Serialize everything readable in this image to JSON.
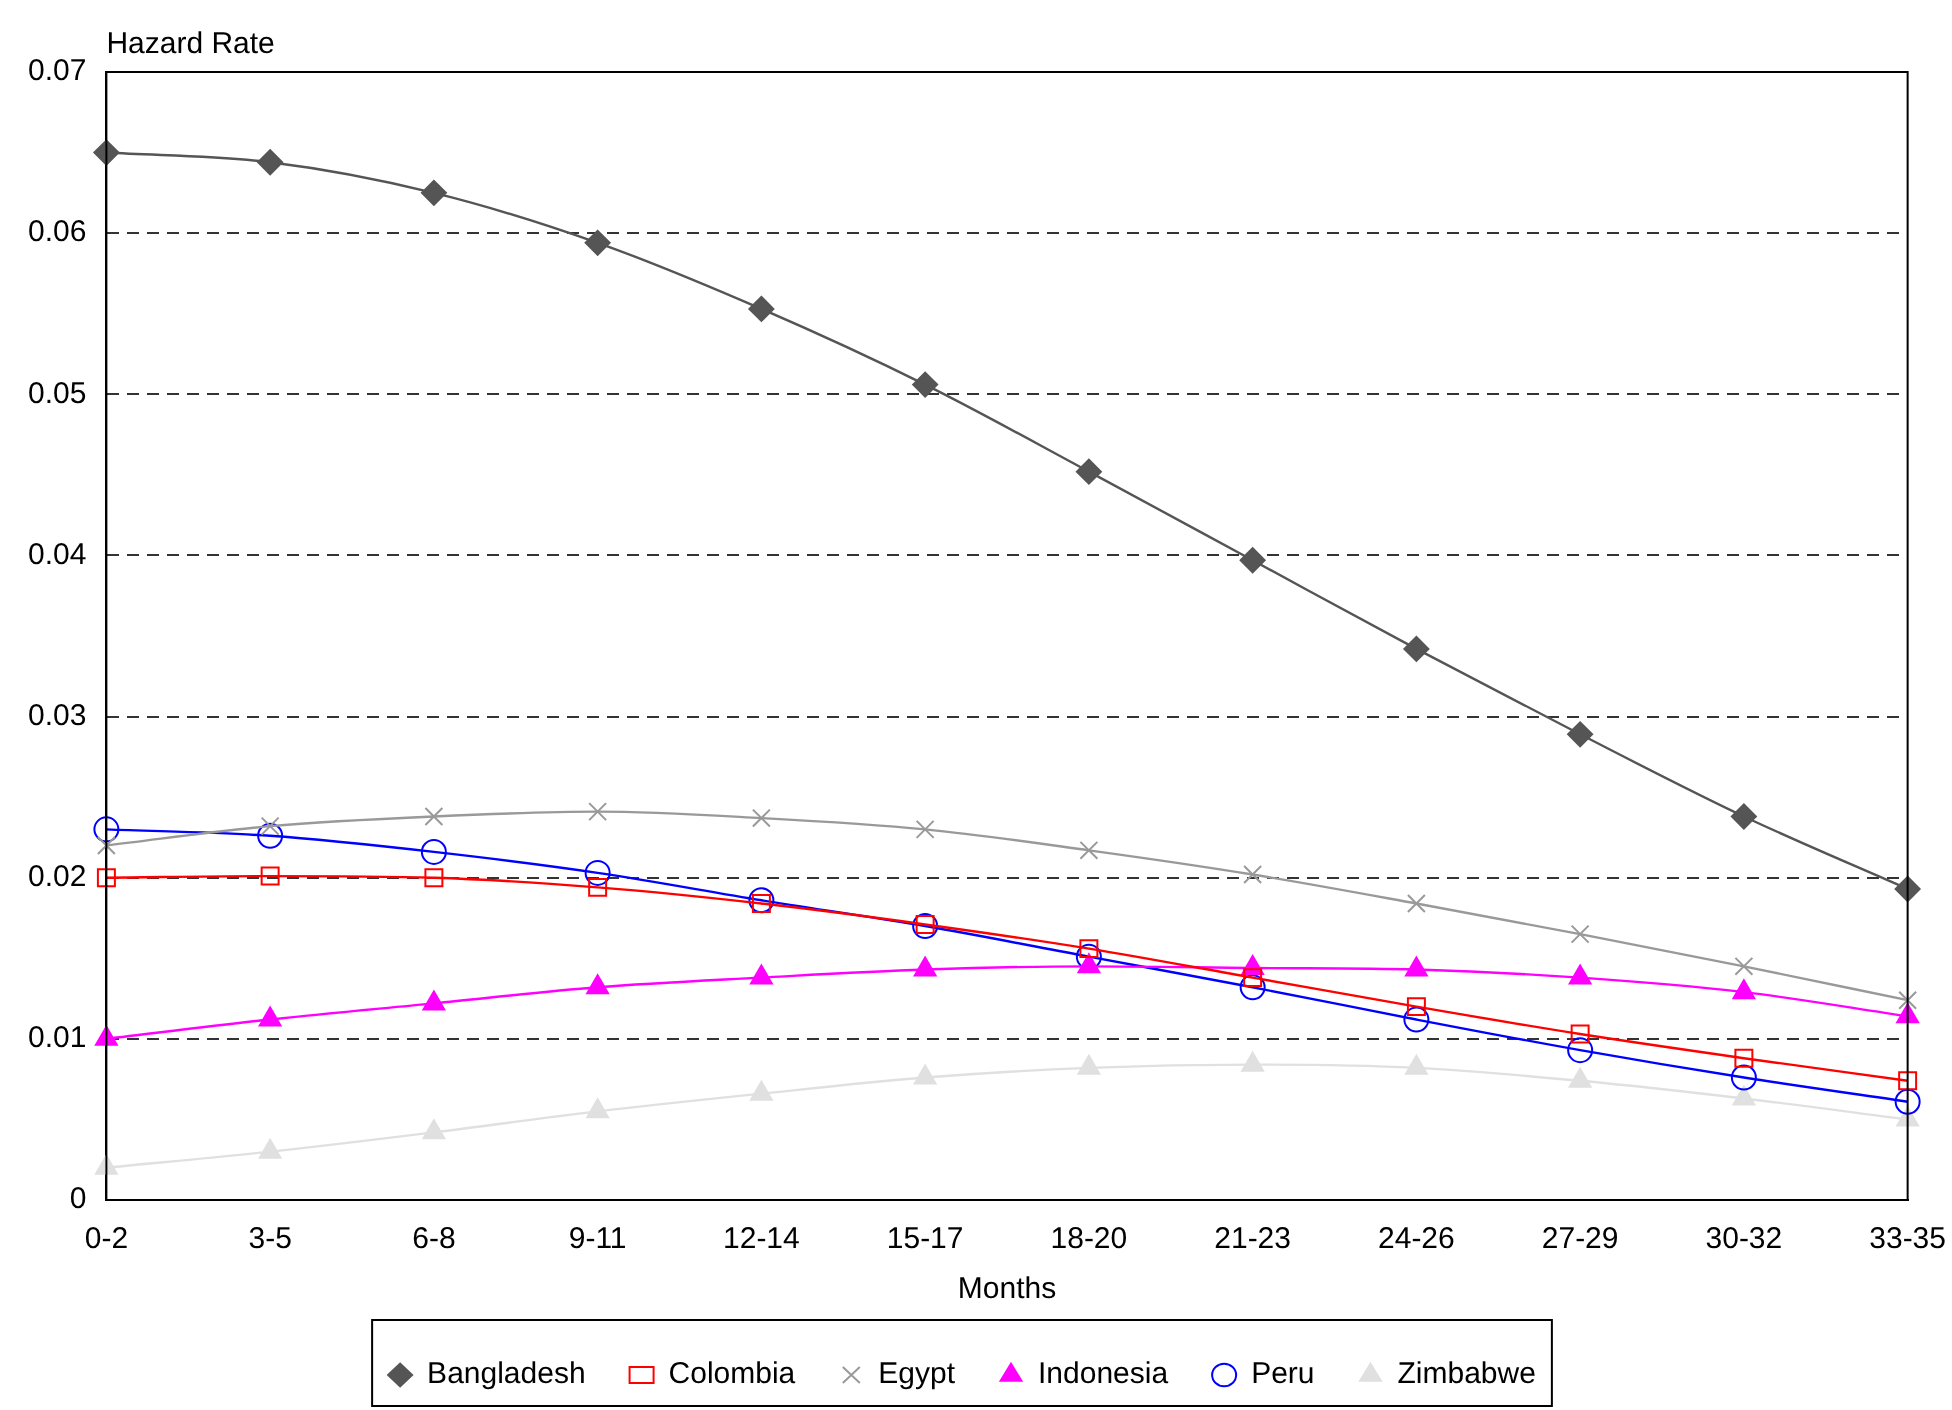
{
  "chart_data": {
    "type": "line",
    "ylabel": "Hazard Rate",
    "xlabel": "Months",
    "categories": [
      "0-2",
      "3-5",
      "6-8",
      "9-11",
      "12-14",
      "15-17",
      "18-20",
      "21-23",
      "24-26",
      "27-29",
      "30-32",
      "33-35"
    ],
    "ylim": [
      0,
      0.07
    ],
    "yticks": [
      0,
      0.01,
      0.02,
      0.03,
      0.04,
      0.05,
      0.06,
      0.07
    ],
    "grid": "y",
    "legend": "bottom",
    "line_style": "solid",
    "series": [
      {
        "name": "Bangladesh",
        "color": "#555555",
        "marker": "diamond",
        "values": [
          0.065,
          0.0644,
          0.0625,
          0.0594,
          0.0553,
          0.0506,
          0.0452,
          0.0397,
          0.0342,
          0.0289,
          0.0238,
          0.0193
        ]
      },
      {
        "name": "Colombia",
        "color": "#ff0000",
        "marker": "square",
        "values": [
          0.02,
          0.0201,
          0.02,
          0.0194,
          0.0184,
          0.0171,
          0.0156,
          0.0138,
          0.012,
          0.0103,
          0.0088,
          0.0074
        ]
      },
      {
        "name": "Egypt",
        "color": "#999999",
        "marker": "cross",
        "values": [
          0.022,
          0.0232,
          0.0238,
          0.0241,
          0.0237,
          0.023,
          0.0217,
          0.0202,
          0.0184,
          0.0165,
          0.0145,
          0.0124
        ]
      },
      {
        "name": "Indonesia",
        "color": "#ff00ff",
        "marker": "triangle",
        "values": [
          0.01,
          0.0112,
          0.0122,
          0.0132,
          0.0138,
          0.0143,
          0.0145,
          0.0144,
          0.0143,
          0.0138,
          0.0129,
          0.0114
        ]
      },
      {
        "name": "Peru",
        "color": "#0000ff",
        "marker": "circle",
        "values": [
          0.023,
          0.0226,
          0.0216,
          0.0203,
          0.0186,
          0.017,
          0.0151,
          0.0132,
          0.0112,
          0.0093,
          0.0076,
          0.0061
        ]
      },
      {
        "name": "Zimbabwe",
        "color": "#e0e0e0",
        "marker": "triangle",
        "values": [
          0.002,
          0.003,
          0.0042,
          0.0055,
          0.0066,
          0.0076,
          0.0082,
          0.0084,
          0.0082,
          0.0074,
          0.0063,
          0.005
        ]
      }
    ]
  }
}
